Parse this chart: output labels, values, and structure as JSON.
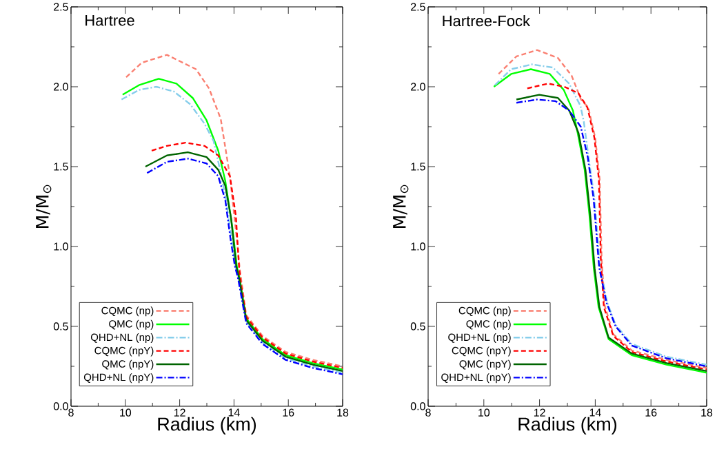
{
  "chart_data": [
    {
      "type": "line",
      "title": "Hartree",
      "xlabel": "Radius (km)",
      "ylabel": "M/M$_{⊙}$",
      "xlim": [
        8,
        18
      ],
      "ylim": [
        0,
        2.5
      ],
      "xticks": [
        8,
        10,
        12,
        14,
        16,
        18
      ],
      "yticks": [
        {
          "value": 0,
          "label": "0.0"
        },
        {
          "value": 0.5,
          "label": "0.5"
        },
        {
          "value": 1,
          "label": "1.0"
        },
        {
          "value": 1.5,
          "label": "1.5"
        },
        {
          "value": 2,
          "label": "2.0"
        },
        {
          "value": 2.5,
          "label": "2.5"
        }
      ],
      "legend": "bottom left",
      "series": [
        {
          "name": "CQMC (np)",
          "color": "#fa8072",
          "line_style": "dashed",
          "x": [
            10.03,
            10.6,
            11.53,
            12.6,
            13.08,
            13.51,
            13.85,
            14.11,
            14.21,
            14.3,
            14.45,
            15.05,
            15.9,
            16.9,
            18
          ],
          "values": [
            2.06,
            2.15,
            2.2,
            2.11,
            1.99,
            1.8,
            1.44,
            1.04,
            0.86,
            0.75,
            0.57,
            0.44,
            0.34,
            0.29,
            0.25
          ]
        },
        {
          "name": "QMC (np)",
          "color": "#00ff00",
          "line_style": "solid",
          "x": [
            9.9,
            10.5,
            11.23,
            11.88,
            12.48,
            12.99,
            13.42,
            13.68,
            13.94,
            14.11,
            14.21,
            14.45,
            15.05,
            15.9,
            16.9,
            18
          ],
          "values": [
            1.95,
            2.01,
            2.05,
            2.02,
            1.93,
            1.79,
            1.6,
            1.41,
            1.12,
            0.87,
            0.8,
            0.55,
            0.42,
            0.32,
            0.27,
            0.23
          ]
        },
        {
          "name": "QHD+NL (np)",
          "color": "#87ceeb",
          "line_style": "dashdot",
          "x": [
            9.86,
            10.5,
            11.14,
            11.79,
            12.39,
            12.91,
            13.25,
            13.46,
            13.7,
            13.91,
            14.05,
            14.17,
            14.45,
            15.05,
            15.9,
            16.9,
            18
          ],
          "values": [
            1.92,
            1.98,
            2.0,
            1.97,
            1.89,
            1.77,
            1.66,
            1.5,
            1.3,
            1.05,
            0.88,
            0.8,
            0.53,
            0.4,
            0.3,
            0.25,
            0.21
          ]
        },
        {
          "name": "CQMC (npY)",
          "color": "#ff0000",
          "line_style": "dashed",
          "x": [
            10.97,
            11.53,
            12.22,
            12.91,
            13.42,
            13.85,
            14.07,
            14.19,
            14.27,
            14.45,
            15.05,
            15.9,
            16.9,
            18
          ],
          "values": [
            1.6,
            1.63,
            1.65,
            1.63,
            1.57,
            1.44,
            1.19,
            0.86,
            0.75,
            0.56,
            0.43,
            0.33,
            0.28,
            0.24
          ]
        },
        {
          "name": "QMC (npY)",
          "color": "#006400",
          "line_style": "solid",
          "x": [
            10.74,
            11.53,
            12.3,
            12.99,
            13.42,
            13.68,
            13.89,
            14.08,
            14.19,
            14.45,
            15.05,
            15.9,
            16.9,
            18
          ],
          "values": [
            1.5,
            1.57,
            1.59,
            1.56,
            1.48,
            1.38,
            1.18,
            0.88,
            0.8,
            0.54,
            0.41,
            0.31,
            0.26,
            0.22
          ]
        },
        {
          "name": "QHD+NL (npY)",
          "color": "#0000ff",
          "line_style": "dashdot",
          "x": [
            10.8,
            11.53,
            12.3,
            12.99,
            13.42,
            13.68,
            13.87,
            14.03,
            14.15,
            14.45,
            15.05,
            15.9,
            16.9,
            18
          ],
          "values": [
            1.46,
            1.53,
            1.55,
            1.52,
            1.44,
            1.29,
            1.05,
            0.88,
            0.8,
            0.52,
            0.39,
            0.29,
            0.24,
            0.2
          ]
        }
      ]
    },
    {
      "type": "line",
      "title": "Hartree-Fock",
      "xlabel": "Radius (km)",
      "ylabel": "M/M$_{⊙}$",
      "xlim": [
        8,
        18
      ],
      "ylim": [
        0,
        2.5
      ],
      "xticks": [
        8,
        10,
        12,
        14,
        16,
        18
      ],
      "yticks": [
        {
          "value": 0,
          "label": "0.0"
        },
        {
          "value": 0.5,
          "label": "0.5"
        },
        {
          "value": 1,
          "label": "1.0"
        },
        {
          "value": 1.5,
          "label": "1.5"
        },
        {
          "value": 2,
          "label": "2.0"
        },
        {
          "value": 2.5,
          "label": "2.5"
        }
      ],
      "legend": "bottom left",
      "series": [
        {
          "name": "CQMC (np)",
          "color": "#fa8072",
          "line_style": "dashed",
          "x": [
            10.53,
            11.17,
            11.91,
            12.66,
            13.15,
            13.49,
            13.75,
            14.0,
            14.16,
            14.23,
            14.34,
            14.65,
            15.31,
            16.56,
            18
          ],
          "values": [
            2.08,
            2.19,
            2.23,
            2.18,
            2.07,
            1.92,
            1.87,
            1.68,
            1.42,
            0.92,
            0.63,
            0.45,
            0.35,
            0.29,
            0.24
          ]
        },
        {
          "name": "QMC (np)",
          "color": "#00ff00",
          "line_style": "solid",
          "x": [
            10.36,
            10.98,
            11.69,
            12.37,
            12.87,
            13.2,
            13.37,
            13.62,
            13.79,
            13.95,
            14.12,
            14.48,
            15.31,
            16.56,
            18
          ],
          "values": [
            2.0,
            2.08,
            2.11,
            2.08,
            1.98,
            1.85,
            1.71,
            1.48,
            1.2,
            0.86,
            0.62,
            0.42,
            0.32,
            0.26,
            0.21
          ]
        },
        {
          "name": "QHD+NL (np)",
          "color": "#87ceeb",
          "line_style": "dashdot",
          "x": [
            10.4,
            10.98,
            11.73,
            12.48,
            13.06,
            13.47,
            13.59,
            13.76,
            13.97,
            14.17,
            14.43,
            14.73,
            15.31,
            16.56,
            18
          ],
          "values": [
            2.01,
            2.11,
            2.14,
            2.12,
            2.02,
            1.88,
            1.78,
            1.56,
            1.3,
            0.87,
            0.65,
            0.51,
            0.39,
            0.31,
            0.26
          ]
        },
        {
          "name": "CQMC (npY)",
          "color": "#ff0000",
          "line_style": "dashed",
          "x": [
            11.56,
            12.31,
            12.89,
            13.39,
            13.72,
            13.97,
            14.13,
            14.2,
            14.31,
            14.65,
            15.31,
            16.56,
            18
          ],
          "values": [
            1.99,
            2.02,
            2.0,
            1.96,
            1.87,
            1.68,
            1.42,
            0.92,
            0.62,
            0.44,
            0.34,
            0.28,
            0.23
          ]
        },
        {
          "name": "QMC (npY)",
          "color": "#006400",
          "line_style": "solid",
          "x": [
            11.17,
            11.99,
            12.66,
            13.07,
            13.4,
            13.65,
            13.82,
            13.98,
            14.15,
            14.48,
            15.31,
            16.56,
            18
          ],
          "values": [
            1.92,
            1.95,
            1.93,
            1.85,
            1.71,
            1.48,
            1.2,
            0.86,
            0.62,
            0.43,
            0.33,
            0.27,
            0.22
          ]
        },
        {
          "name": "QHD+NL (npY)",
          "color": "#0000ff",
          "line_style": "dashdot",
          "x": [
            11.17,
            11.91,
            12.57,
            13.07,
            13.48,
            13.73,
            13.94,
            14.14,
            14.4,
            14.73,
            15.31,
            16.56,
            18
          ],
          "values": [
            1.9,
            1.92,
            1.91,
            1.85,
            1.75,
            1.56,
            1.3,
            0.87,
            0.65,
            0.5,
            0.38,
            0.3,
            0.25
          ]
        }
      ]
    }
  ]
}
